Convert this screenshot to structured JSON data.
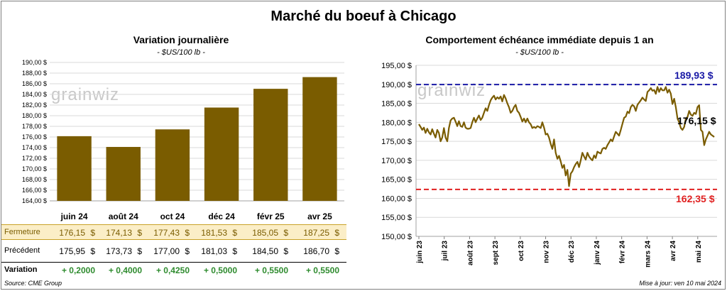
{
  "main_title": "Marché du boeuf à Chicago",
  "left_chart_title": "Variation  journalière",
  "left_chart_unit": "- $US/100 lb -",
  "right_chart_title": "Comportement  échéance immédiate depuis 1 an",
  "right_chart_unit": "- $US/100 lb -",
  "watermark": "grainwiz",
  "colors": {
    "bar": "#7a5c00",
    "line": "#7a5c00",
    "high": "#1a1aa6",
    "low": "#e02020",
    "green": "#2e8b2e"
  },
  "table": {
    "close_label": "Fermeture",
    "prev_label": "Précédent",
    "var_label": "Variation",
    "close_values": [
      "176,15",
      "174,13",
      "177,43",
      "181,53",
      "185,05",
      "187,25"
    ],
    "prev_values": [
      "175,95",
      "173,73",
      "177,00",
      "181,03",
      "184,50",
      "186,70"
    ],
    "var_values": [
      "+ 0,2000",
      "+ 0,4000",
      "+ 0,4250",
      "+ 0,5000",
      "+ 0,5500",
      "+ 0,5500"
    ],
    "dollar": "$"
  },
  "footer": {
    "source": "Source: CME Group",
    "update": "Mise à jour: ven 10 mai 2024"
  },
  "chart_data": [
    {
      "type": "bar",
      "title": "Variation  journalière",
      "categories": [
        "juin 24",
        "août 24",
        "oct 24",
        "déc 24",
        "févr 25",
        "avr 25"
      ],
      "values": [
        176.15,
        174.13,
        177.43,
        181.53,
        185.05,
        187.25
      ],
      "ylim": [
        164,
        190
      ],
      "yticks": [
        "164,00 $",
        "166,00 $",
        "168,00 $",
        "170,00 $",
        "172,00 $",
        "174,00 $",
        "176,00 $",
        "178,00 $",
        "180,00 $",
        "182,00 $",
        "184,00 $",
        "186,00 $",
        "188,00 $",
        "190,00 $"
      ],
      "grid": true
    },
    {
      "type": "line",
      "title": "Comportement  échéance immédiate depuis 1 an",
      "ylim": [
        150,
        195
      ],
      "yticks": [
        "150,00 $",
        "155,00 $",
        "160,00 $",
        "165,00 $",
        "170,00 $",
        "175,00 $",
        "180,00 $",
        "185,00 $",
        "190,00 $",
        "195,00 $"
      ],
      "xticks": [
        "juin 23",
        "juil 23",
        "août 23",
        "sept 23",
        "oct 23",
        "nov 23",
        "déc 23",
        "janv 24",
        "févr 24",
        "mars 24",
        "avr 24",
        "mai 24"
      ],
      "high": {
        "value": 189.93,
        "label": "189,93 $"
      },
      "low": {
        "value": 162.35,
        "label": "162,35 $"
      },
      "last": {
        "value": 176.15,
        "label": "176,15 $"
      },
      "series": [
        {
          "values": [
            179.5,
            178.8,
            178.0,
            178.6,
            177.2,
            178.3,
            177.4,
            176.8,
            178.2,
            177.0,
            176.0,
            178.0,
            177.2,
            175.0,
            176.0,
            178.5,
            176.0,
            175.0,
            178.5,
            180.5,
            181.0,
            181.2,
            180.2,
            179.0,
            180.3,
            179.0,
            178.8,
            180.0,
            178.6,
            178.3,
            178.3,
            178.5,
            180.0,
            181.2,
            180.0,
            181.0,
            181.8,
            180.6,
            181.2,
            182.5,
            183.7,
            183.0,
            184.5,
            185.8,
            186.5,
            187.0,
            186.0,
            186.6,
            186.2,
            186.8,
            185.5,
            187.2,
            186.3,
            185.0,
            184.0,
            182.5,
            183.0,
            184.0,
            184.6,
            183.0,
            182.5,
            181.4,
            180.2,
            181.0,
            180.0,
            181.0,
            180.0,
            179.5,
            178.5,
            178.8,
            178.5,
            179.0,
            178.8,
            178.5,
            180.0,
            178.6,
            176.8,
            177.0,
            176.0,
            174.3,
            173.0,
            175.5,
            172.0,
            170.4,
            171.2,
            169.7,
            168.0,
            168.8,
            166.0,
            167.5,
            163.2,
            166.5,
            167.1,
            168.2,
            169.0,
            169.6,
            168.2,
            170.0,
            172.0,
            171.0,
            170.2,
            172.0,
            171.0,
            170.4,
            170.0,
            171.3,
            170.6,
            172.3,
            172.0,
            171.8,
            173.0,
            173.3,
            173.0,
            174.0,
            174.7,
            175.5,
            175.0,
            176.3,
            177.5,
            177.0,
            176.5,
            178.0,
            179.6,
            181.2,
            181.5,
            182.8,
            182.4,
            184.0,
            184.6,
            184.2,
            183.0,
            184.6,
            185.2,
            185.8,
            186.5,
            186.0,
            185.6,
            188.0,
            188.4,
            189.0,
            188.3,
            188.5,
            187.5,
            189.3,
            188.0,
            189.0,
            188.4,
            188.4,
            189.3,
            187.8,
            188.6,
            187.5,
            184.8,
            186.2,
            184.0,
            181.0,
            180.0,
            178.5,
            178.0,
            178.8,
            181.0,
            181.4,
            183.0,
            182.0,
            181.7,
            182.5,
            182.2,
            184.0,
            184.5,
            178.0,
            177.5,
            174.0,
            175.5,
            176.5,
            177.5,
            176.8,
            176.5,
            176.15
          ]
        }
      ]
    }
  ]
}
